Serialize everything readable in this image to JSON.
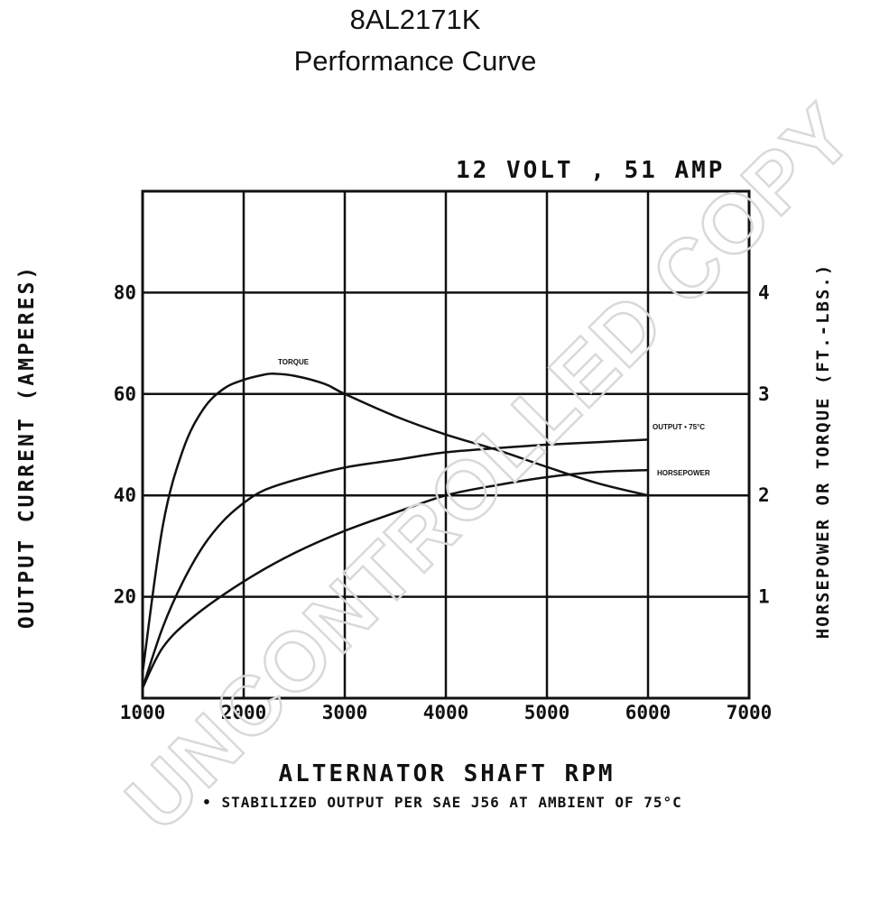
{
  "header": {
    "model": "8AL2171K",
    "subtitle": "Performance Curve"
  },
  "watermark": "UNCONTROLLED COPY",
  "chart_data": {
    "type": "line",
    "rating": "12 VOLT , 51 AMP",
    "xlabel": "ALTERNATOR SHAFT RPM",
    "ylabel_left": "OUTPUT CURRENT (AMPERES)",
    "ylabel_right": "HORSEPOWER OR TORQUE (FT.-LBS.)",
    "footnote": "• STABILIZED OUTPUT PER SAE J56 AT AMBIENT OF 75°C",
    "xlim": [
      1000,
      7000
    ],
    "ylim_left": [
      0,
      100
    ],
    "ylim_right": [
      0,
      5
    ],
    "x_ticks": [
      "1000",
      "2000",
      "3000",
      "4000",
      "5000",
      "6000",
      "7000"
    ],
    "y_ticks_left": [
      "20",
      "40",
      "60",
      "80"
    ],
    "y_ticks_right": [
      "1",
      "2",
      "3",
      "4"
    ],
    "grid": true,
    "series": [
      {
        "name": "TORQUE",
        "axis": "right",
        "x": [
          1000,
          1200,
          1400,
          1600,
          1800,
          2000,
          2200,
          2300,
          2500,
          2800,
          3000,
          3500,
          4000,
          4500,
          5000,
          5500,
          6000
        ],
        "y": [
          0.25,
          1.7,
          2.45,
          2.85,
          3.05,
          3.14,
          3.19,
          3.2,
          3.18,
          3.1,
          3.0,
          2.78,
          2.6,
          2.45,
          2.28,
          2.12,
          2.0
        ]
      },
      {
        "name": "OUTPUT • 75°C",
        "axis": "left",
        "x": [
          1000,
          1200,
          1400,
          1600,
          1800,
          2000,
          2200,
          2500,
          3000,
          3500,
          4000,
          4500,
          5000,
          5500,
          6000
        ],
        "y": [
          2,
          14,
          23,
          30,
          35,
          38.5,
          41,
          43,
          45.5,
          47,
          48.5,
          49.3,
          50,
          50.5,
          51
        ]
      },
      {
        "name": "HORSEPOWER",
        "axis": "right",
        "x": [
          1000,
          1200,
          1500,
          2000,
          2500,
          3000,
          3500,
          4000,
          4500,
          5000,
          5500,
          6000
        ],
        "y": [
          0.1,
          0.5,
          0.8,
          1.15,
          1.43,
          1.65,
          1.83,
          2.0,
          2.1,
          2.18,
          2.23,
          2.25
        ]
      }
    ]
  }
}
